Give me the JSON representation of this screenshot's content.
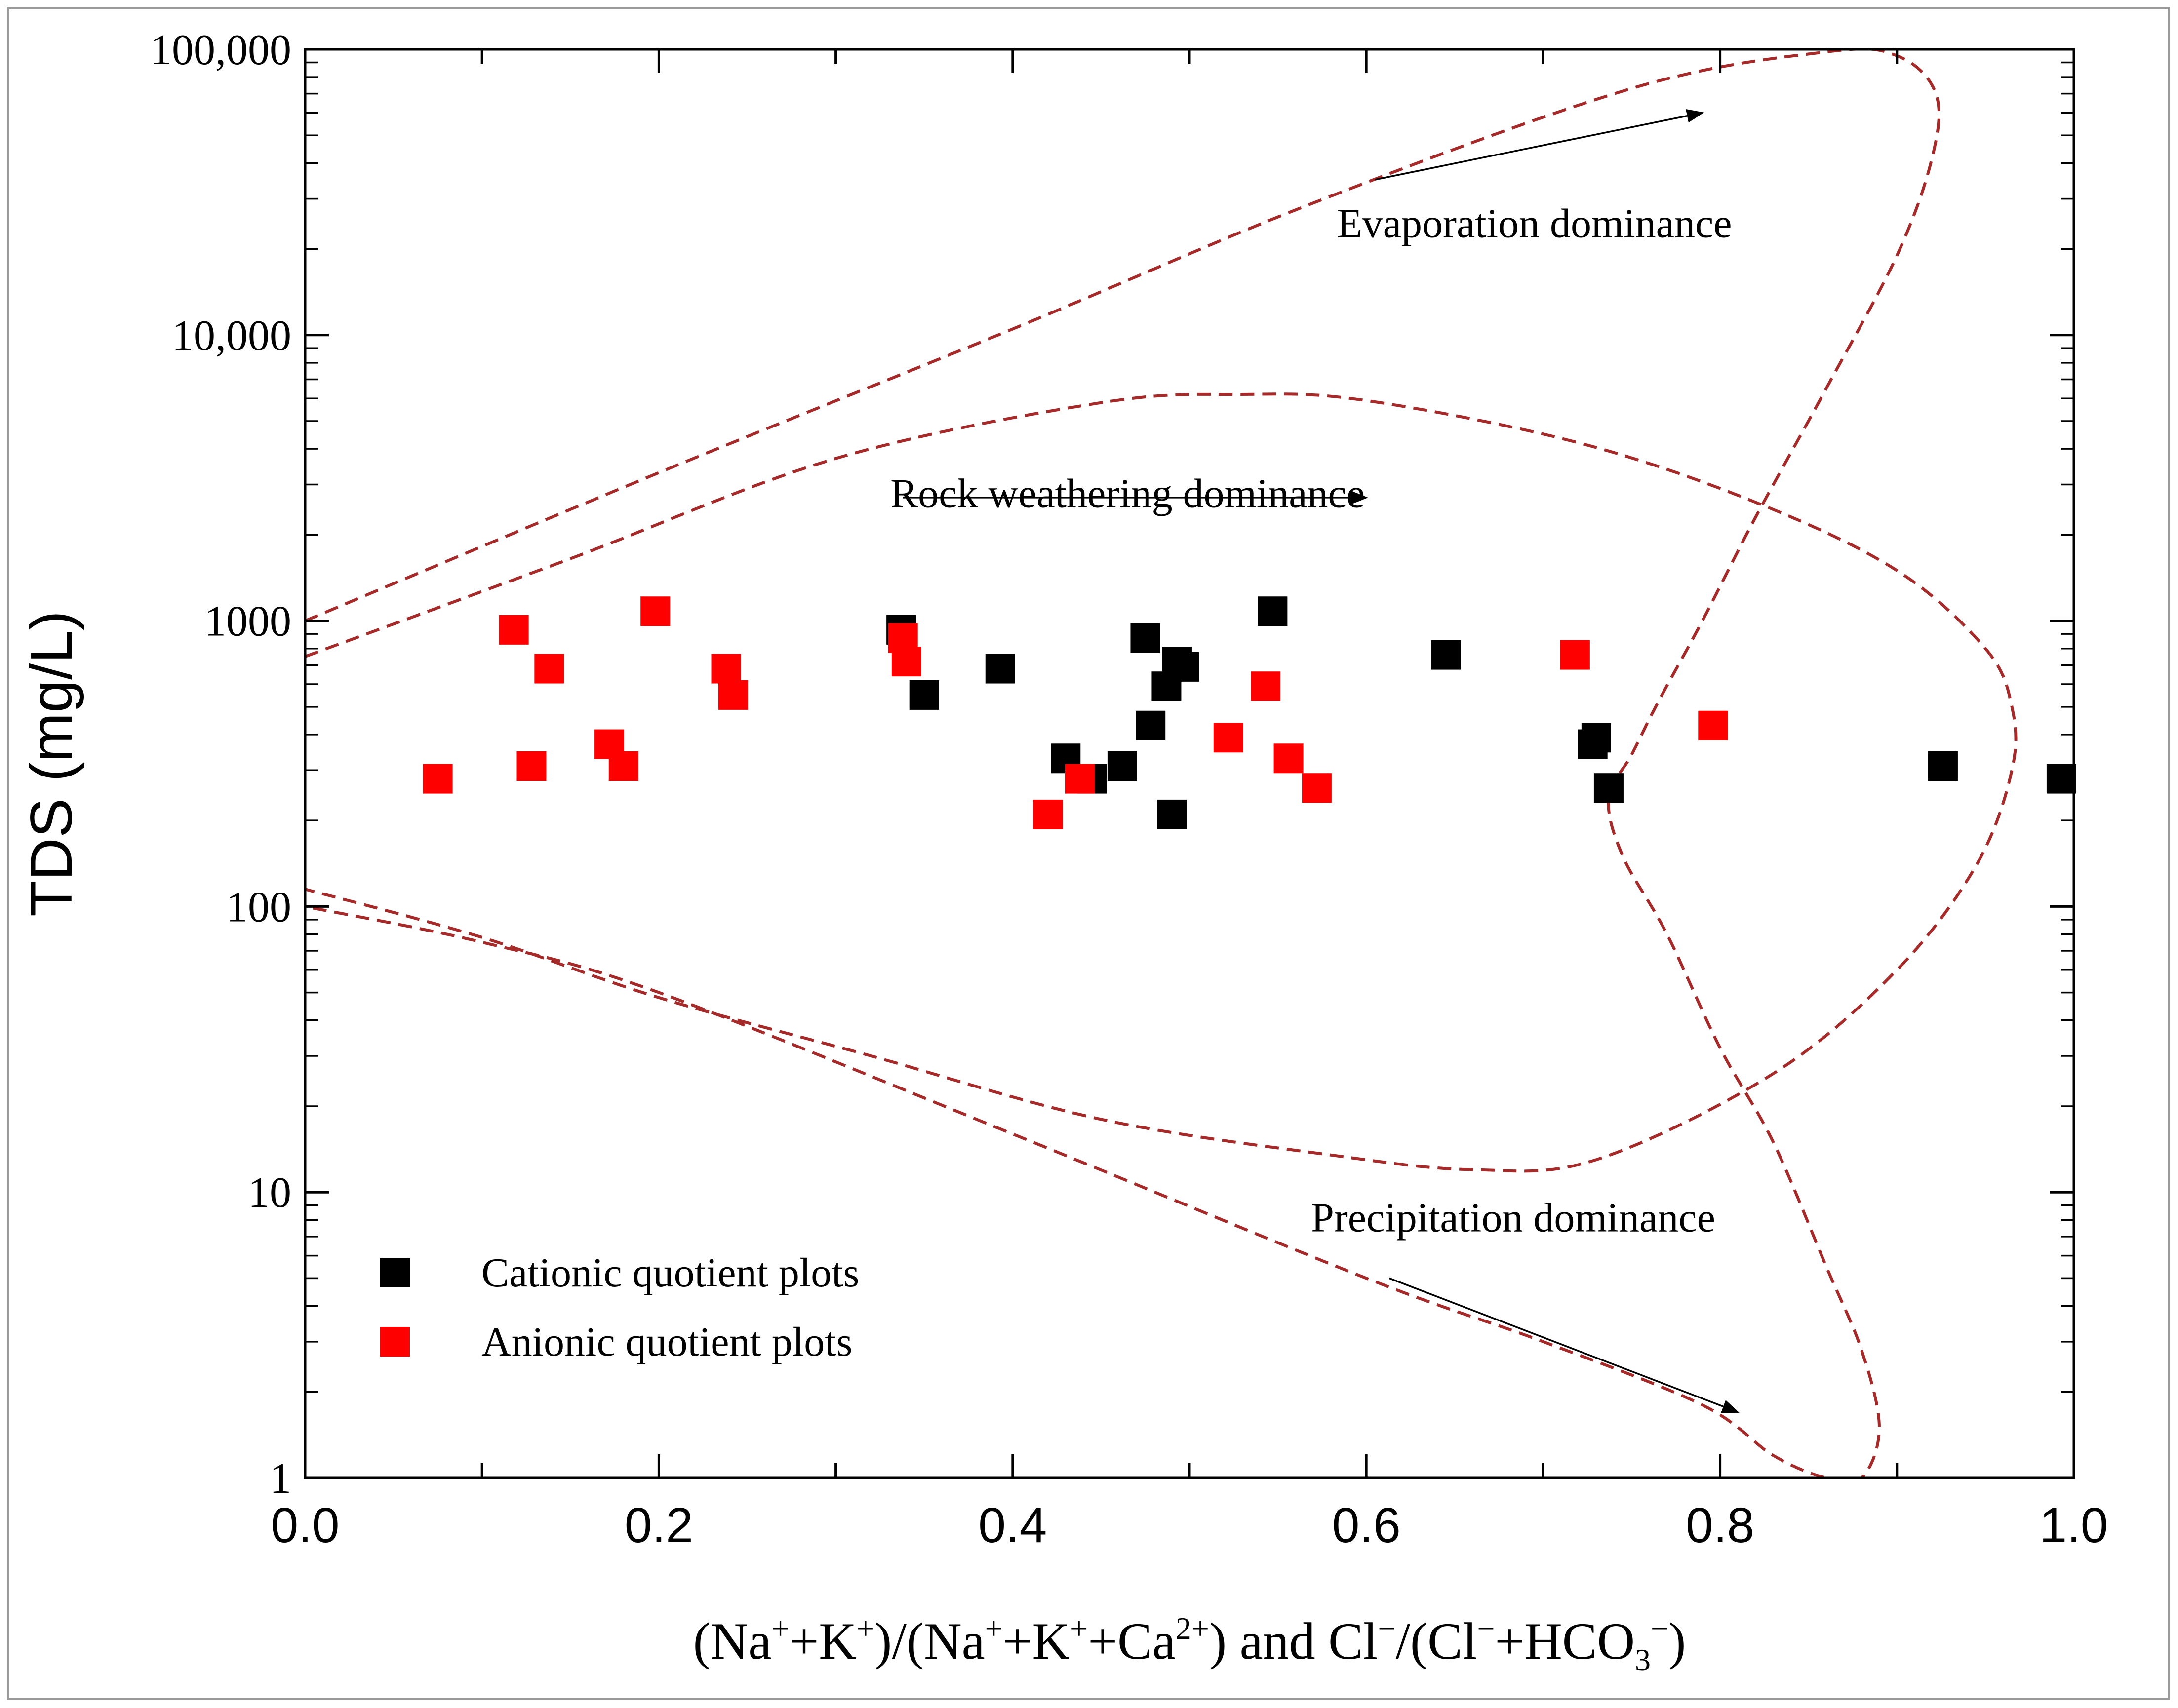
{
  "chart_data": {
    "type": "scatter",
    "title": "",
    "xlabel": {
      "parts": [
        {
          "t": "(Na"
        },
        {
          "t": "+",
          "sup": true
        },
        {
          "t": "+K"
        },
        {
          "t": "+",
          "sup": true
        },
        {
          "t": ")/(Na"
        },
        {
          "t": "+",
          "sup": true
        },
        {
          "t": "+K"
        },
        {
          "t": "+",
          "sup": true
        },
        {
          "t": "+Ca"
        },
        {
          "t": "2+",
          "sup": true
        },
        {
          "t": ") and Cl"
        },
        {
          "t": "−",
          "sup": true
        },
        {
          "t": "/(Cl"
        },
        {
          "t": "−",
          "sup": true
        },
        {
          "t": "+HCO"
        },
        {
          "t": "3",
          "sub": true
        },
        {
          "t": "−",
          "sup": true
        },
        {
          "t": ")"
        }
      ]
    },
    "ylabel": "TDS (mg/L)",
    "xlim": [
      0,
      1
    ],
    "ylim": [
      1,
      100000
    ],
    "yscale": "log",
    "x_ticks": [
      "0.0",
      "0.2",
      "0.4",
      "0.6",
      "0.8",
      "1.0"
    ],
    "y_ticks": [
      {
        "value": 1,
        "label": "1"
      },
      {
        "value": 10,
        "label": "10"
      },
      {
        "value": 100,
        "label": "100"
      },
      {
        "value": 1000,
        "label": "1000"
      },
      {
        "value": 10000,
        "label": "10,000"
      },
      {
        "value": 100000,
        "label": "100,000"
      }
    ],
    "legend_position": "bottom-left",
    "series": [
      {
        "name": "Cationic quotient plots",
        "color": "#000000",
        "marker": "square",
        "points": [
          [
            0.337,
            930
          ],
          [
            0.35,
            550
          ],
          [
            0.393,
            680
          ],
          [
            0.43,
            330
          ],
          [
            0.445,
            280
          ],
          [
            0.462,
            310
          ],
          [
            0.475,
            870
          ],
          [
            0.478,
            430
          ],
          [
            0.487,
            590
          ],
          [
            0.49,
            210
          ],
          [
            0.493,
            720
          ],
          [
            0.497,
            690
          ],
          [
            0.547,
            1080
          ],
          [
            0.645,
            760
          ],
          [
            0.728,
            370
          ],
          [
            0.73,
            390
          ],
          [
            0.737,
            260
          ],
          [
            0.926,
            310
          ],
          [
            0.993,
            280
          ]
        ]
      },
      {
        "name": "Anionic quotient plots",
        "color": "#ff0000",
        "marker": "square",
        "points": [
          [
            0.075,
            280
          ],
          [
            0.118,
            930
          ],
          [
            0.128,
            310
          ],
          [
            0.138,
            680
          ],
          [
            0.172,
            370
          ],
          [
            0.18,
            310
          ],
          [
            0.198,
            1080
          ],
          [
            0.238,
            680
          ],
          [
            0.242,
            550
          ],
          [
            0.338,
            870
          ],
          [
            0.34,
            720
          ],
          [
            0.42,
            210
          ],
          [
            0.438,
            280
          ],
          [
            0.522,
            390
          ],
          [
            0.543,
            590
          ],
          [
            0.556,
            330
          ],
          [
            0.572,
            260
          ],
          [
            0.718,
            760
          ],
          [
            0.796,
            430
          ]
        ]
      }
    ],
    "annotations": [
      {
        "text": "Evaporation dominance",
        "x": 0.695,
        "y": 22000
      },
      {
        "text": "Rock weathering dominance",
        "x": 0.465,
        "y": 2500
      },
      {
        "text": "Precipitation dominance",
        "x": 0.683,
        "y": 7.3
      }
    ],
    "arrows": [
      {
        "name": "evaporation",
        "from": [
          0.605,
          35000
        ],
        "to": [
          0.79,
          60000
        ]
      },
      {
        "name": "rock-weathering",
        "from": [
          0.338,
          2700
        ],
        "to": [
          0.6,
          2700
        ]
      },
      {
        "name": "precipitation",
        "from": [
          0.613,
          5.0
        ],
        "to": [
          0.81,
          1.7
        ]
      }
    ],
    "boundaries": {
      "color": "#a52a2a",
      "style": "dashed",
      "curves": [
        {
          "name": "evaporation-upper",
          "points": [
            [
              0,
              1000
            ],
            [
              0.2,
              3300
            ],
            [
              0.4,
              10500
            ],
            [
              0.57,
              29000
            ],
            [
              0.75,
              73000
            ],
            [
              0.86,
              98000
            ],
            [
              0.9,
              95000
            ],
            [
              0.922,
              70000
            ],
            [
              0.92,
              42000
            ],
            [
              0.9,
              19000
            ],
            [
              0.86,
              6500
            ],
            [
              0.82,
              2300
            ],
            [
              0.79,
              1000
            ],
            [
              0.765,
              520
            ],
            [
              0.75,
              340
            ],
            [
              0.737,
              240
            ],
            [
              0.745,
              150
            ],
            [
              0.77,
              80
            ],
            [
              0.8,
              32
            ],
            [
              0.83,
              15
            ],
            [
              0.86,
              5.5
            ],
            [
              0.88,
              2.8
            ],
            [
              0.89,
              1.5
            ],
            [
              0.88,
              1.0
            ],
            [
              0.86,
              1.0
            ],
            [
              0.83,
              1.2
            ],
            [
              0.79,
              1.8
            ],
            [
              0.7,
              3.0
            ],
            [
              0.6,
              5.0
            ],
            [
              0.4,
              16
            ],
            [
              0.2,
              50
            ],
            [
              0.1,
              75
            ],
            [
              0,
              100
            ]
          ]
        },
        {
          "name": "evaporation-lower",
          "points": [
            [
              0,
              750
            ],
            [
              0.15,
              1650
            ],
            [
              0.3,
              3700
            ],
            [
              0.45,
              5800
            ],
            [
              0.53,
              6200
            ],
            [
              0.6,
              5900
            ],
            [
              0.72,
              4200
            ],
            [
              0.82,
              2600
            ],
            [
              0.9,
              1500
            ],
            [
              0.95,
              800
            ],
            [
              0.965,
              500
            ],
            [
              0.965,
              300
            ],
            [
              0.945,
              140
            ],
            [
              0.9,
              60
            ],
            [
              0.83,
              26
            ],
            [
              0.73,
              13
            ],
            [
              0.66,
              12
            ],
            [
              0.58,
              13.5
            ],
            [
              0.45,
              18
            ],
            [
              0.32,
              30
            ],
            [
              0.2,
              48
            ],
            [
              0.1,
              78
            ],
            [
              0,
              115
            ]
          ]
        }
      ]
    }
  }
}
